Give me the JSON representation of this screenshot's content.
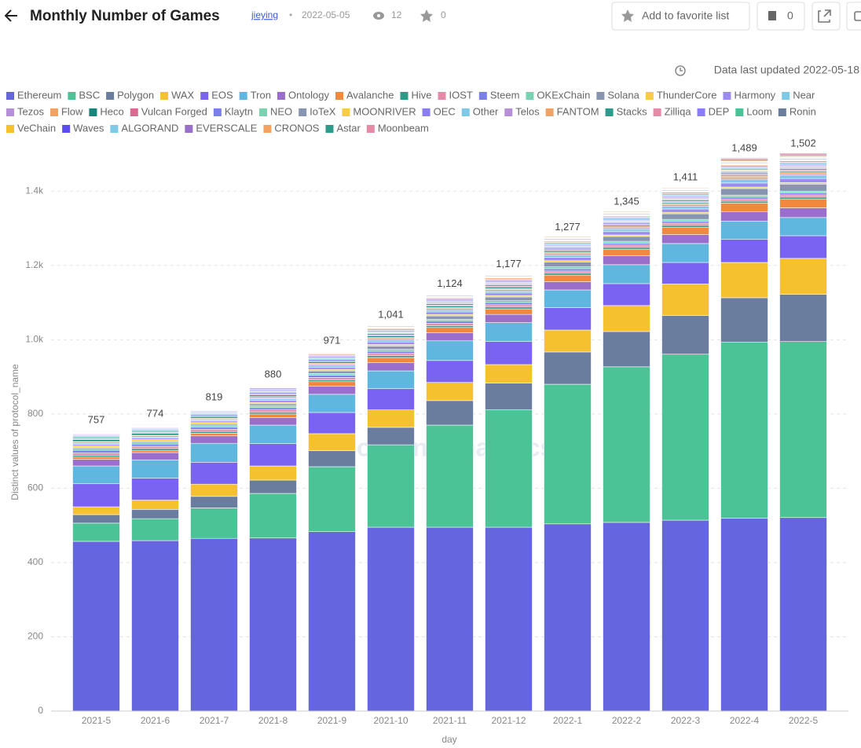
{
  "page": {
    "title": "Monthly Number of Games",
    "author": "jieying",
    "date": "2022-05-05",
    "views": 12,
    "stars": 0,
    "favorite_button": "Add to favorite list",
    "count": 0,
    "updated": "Data last updated 2022-05-18",
    "watermark": "Footprint Analytics"
  },
  "chart_data": {
    "type": "stacked-bar",
    "x_label": "day",
    "y_label": "Distinct values of protocol_name",
    "categories": [
      "2021-5",
      "2021-6",
      "2021-7",
      "2021-8",
      "2021-9",
      "2021-10",
      "2021-11",
      "2021-12",
      "2022-1",
      "2022-2",
      "2022-3",
      "2022-4",
      "2022-5"
    ],
    "ylim": [
      0,
      1500
    ],
    "yticks": [
      0,
      200,
      400,
      600,
      800,
      {
        "value": 1000,
        "label": "1.0k"
      },
      {
        "value": 1200,
        "label": "1.2k"
      },
      {
        "value": 1400,
        "label": "1.4k"
      }
    ],
    "grid": true,
    "totals": [
      757,
      774,
      819,
      880,
      971,
      1041,
      1124,
      1177,
      1277,
      1345,
      1411,
      1489,
      1502
    ],
    "totals_labels": [
      "757",
      "774",
      "819",
      "880",
      "971",
      "1,041",
      "1,124",
      "1,177",
      "1,277",
      "1,345",
      "1,411",
      "1,489",
      "1,502"
    ],
    "series": [
      {
        "name": "Ethereum",
        "color": "#6565e0",
        "values": [
          457,
          459,
          465,
          466,
          483,
          495,
          495,
          495,
          504,
          508,
          514,
          519,
          521
        ]
      },
      {
        "name": "BSC",
        "color": "#4cc397",
        "values": [
          49,
          59,
          82,
          120,
          175,
          222,
          275,
          316,
          376,
          419,
          447,
          474,
          474
        ]
      },
      {
        "name": "Polygon",
        "color": "#6b7d9e",
        "values": [
          23,
          25,
          31,
          36,
          43,
          47,
          66,
          72,
          87,
          95,
          104,
          120,
          127
        ]
      },
      {
        "name": "WAX",
        "color": "#f5c12e",
        "values": [
          21,
          25,
          33,
          38,
          46,
          47,
          49,
          50,
          59,
          70,
          85,
          95,
          97
        ]
      },
      {
        "name": "EOS",
        "color": "#7a63f0",
        "values": [
          62,
          59,
          59,
          60,
          57,
          57,
          59,
          62,
          60,
          59,
          58,
          62,
          61
        ]
      },
      {
        "name": "Tron",
        "color": "#5fb6de",
        "values": [
          48,
          49,
          51,
          50,
          49,
          48,
          53,
          51,
          48,
          51,
          51,
          49,
          49
        ]
      },
      {
        "name": "Ontology",
        "color": "#9a6fcb",
        "values": [
          18,
          20,
          20,
          20,
          22,
          22,
          22,
          22,
          22,
          24,
          24,
          26,
          26
        ]
      },
      {
        "name": "Avalanche",
        "color": "#f0883e",
        "values": [
          6,
          6,
          7,
          10,
          12,
          14,
          14,
          15,
          18,
          18,
          20,
          23,
          24
        ]
      },
      {
        "name": "Hive",
        "color": "#2b9b8a",
        "values": [
          5,
          5,
          5,
          5,
          5,
          5,
          5,
          5,
          5,
          5,
          5,
          5,
          5
        ]
      },
      {
        "name": "IOST",
        "color": "#e68aa6",
        "values": [
          6,
          6,
          6,
          6,
          6,
          6,
          6,
          6,
          6,
          6,
          6,
          6,
          6
        ]
      },
      {
        "name": "Steem",
        "color": "#7b7fe8",
        "values": [
          7,
          6,
          6,
          6,
          6,
          6,
          6,
          6,
          6,
          5,
          5,
          5,
          5
        ]
      },
      {
        "name": "OKExChain",
        "color": "#79d3b0",
        "values": [
          5,
          5,
          5,
          5,
          5,
          5,
          5,
          5,
          5,
          5,
          5,
          5,
          5
        ]
      },
      {
        "name": "Solana",
        "color": "#8895b0",
        "values": [
          3,
          3,
          3,
          5,
          7,
          9,
          9,
          10,
          13,
          13,
          15,
          18,
          19
        ]
      },
      {
        "name": "ThunderCore",
        "color": "#f7cb44",
        "values": [
          4,
          4,
          4,
          4,
          4,
          4,
          4,
          4,
          4,
          4,
          4,
          4,
          4
        ]
      },
      {
        "name": "Harmony",
        "color": "#9b8cf5",
        "values": [
          4,
          4,
          4,
          6,
          6,
          7,
          7,
          7,
          9,
          9,
          9,
          11,
          11
        ]
      },
      {
        "name": "Near",
        "color": "#7ec9e6",
        "values": [
          3,
          3,
          3,
          4,
          5,
          5,
          5,
          5,
          6,
          6,
          7,
          9,
          9
        ]
      },
      {
        "name": "Tezos",
        "color": "#b58fd8",
        "values": [
          3,
          3,
          3,
          3,
          3,
          4,
          4,
          4,
          4,
          4,
          4,
          4,
          4
        ]
      },
      {
        "name": "Flow",
        "color": "#f4a261",
        "values": [
          2,
          2,
          2,
          3,
          3,
          3,
          3,
          3,
          4,
          4,
          4,
          5,
          5
        ]
      },
      {
        "name": "Heco",
        "color": "#14867a",
        "values": [
          5,
          5,
          4,
          4,
          4,
          4,
          4,
          4,
          4,
          3,
          3,
          3,
          3
        ]
      },
      {
        "name": "Vulcan Forged",
        "color": "#d96b93",
        "values": [
          2,
          2,
          2,
          2,
          2,
          2,
          2,
          2,
          2,
          2,
          2,
          2,
          2
        ]
      },
      {
        "name": "Klaytn",
        "color": "#7b7fe8",
        "values": [
          3,
          3,
          3,
          4,
          4,
          4,
          4,
          4,
          4,
          4,
          4,
          4,
          4
        ]
      },
      {
        "name": "NEO",
        "color": "#79d3b0",
        "values": [
          3,
          3,
          3,
          3,
          3,
          3,
          3,
          3,
          3,
          3,
          3,
          3,
          3
        ]
      },
      {
        "name": "IoTeX",
        "color": "#8895b0",
        "values": [
          2,
          2,
          2,
          2,
          2,
          2,
          2,
          2,
          2,
          2,
          2,
          2,
          2
        ]
      },
      {
        "name": "MOONRIVER",
        "color": "#f7cb44",
        "values": [
          0,
          0,
          0,
          0,
          0,
          0,
          1,
          1,
          2,
          2,
          3,
          3,
          3
        ]
      },
      {
        "name": "OEC",
        "color": "#8a7cf5",
        "values": [
          2,
          2,
          2,
          3,
          3,
          3,
          3,
          3,
          3,
          3,
          3,
          3,
          3
        ]
      },
      {
        "name": "Other",
        "color": "#7ec9e6",
        "values": [
          2,
          2,
          2,
          2,
          2,
          2,
          3,
          3,
          3,
          3,
          3,
          3,
          3
        ]
      },
      {
        "name": "Telos",
        "color": "#b58fd8",
        "values": [
          2,
          2,
          2,
          3,
          3,
          3,
          3,
          3,
          3,
          3,
          3,
          3,
          3
        ]
      },
      {
        "name": "FANTOM",
        "color": "#f4a261",
        "values": [
          1,
          1,
          1,
          1,
          2,
          2,
          2,
          3,
          3,
          3,
          4,
          4,
          4
        ]
      },
      {
        "name": "Stacks",
        "color": "#2b9b8a",
        "values": [
          1,
          1,
          1,
          1,
          1,
          1,
          1,
          1,
          1,
          1,
          1,
          1,
          1
        ]
      },
      {
        "name": "Zilliqa",
        "color": "#e68aa6",
        "values": [
          1,
          1,
          1,
          1,
          1,
          1,
          1,
          1,
          1,
          1,
          1,
          1,
          1
        ]
      },
      {
        "name": "DEP",
        "color": "#8a7cf5",
        "values": [
          1,
          1,
          1,
          1,
          1,
          1,
          1,
          1,
          1,
          1,
          1,
          1,
          1
        ]
      },
      {
        "name": "Loom",
        "color": "#4cc397",
        "values": [
          1,
          1,
          1,
          1,
          1,
          1,
          1,
          1,
          1,
          1,
          1,
          1,
          1
        ]
      },
      {
        "name": "Ronin",
        "color": "#6b7d9e",
        "values": [
          1,
          1,
          1,
          1,
          1,
          2,
          2,
          2,
          2,
          2,
          2,
          2,
          2
        ]
      },
      {
        "name": "VeChain",
        "color": "#f5c12e",
        "values": [
          1,
          1,
          1,
          1,
          1,
          1,
          1,
          1,
          1,
          1,
          1,
          1,
          1
        ]
      },
      {
        "name": "Waves",
        "color": "#5b4cf0",
        "values": [
          1,
          1,
          1,
          1,
          1,
          1,
          1,
          1,
          1,
          1,
          1,
          1,
          1
        ]
      },
      {
        "name": "ALGORAND",
        "color": "#7ec9e6",
        "values": [
          1,
          1,
          1,
          1,
          1,
          1,
          1,
          1,
          1,
          1,
          1,
          1,
          1
        ]
      },
      {
        "name": "EVERSCALE",
        "color": "#9a6fcb",
        "values": [
          1,
          1,
          1,
          1,
          1,
          1,
          1,
          1,
          1,
          1,
          1,
          1,
          1
        ]
      },
      {
        "name": "CRONOS",
        "color": "#f4a261",
        "values": [
          0,
          0,
          0,
          0,
          0,
          0,
          0,
          1,
          2,
          2,
          2,
          3,
          3
        ]
      },
      {
        "name": "Astar",
        "color": "#2b9b8a",
        "values": [
          0,
          0,
          0,
          0,
          0,
          0,
          0,
          0,
          0,
          0,
          1,
          3,
          3
        ]
      },
      {
        "name": "Moonbeam",
        "color": "#e68aa6",
        "values": [
          0,
          0,
          0,
          0,
          0,
          0,
          0,
          0,
          0,
          0,
          1,
          3,
          4
        ]
      }
    ]
  }
}
